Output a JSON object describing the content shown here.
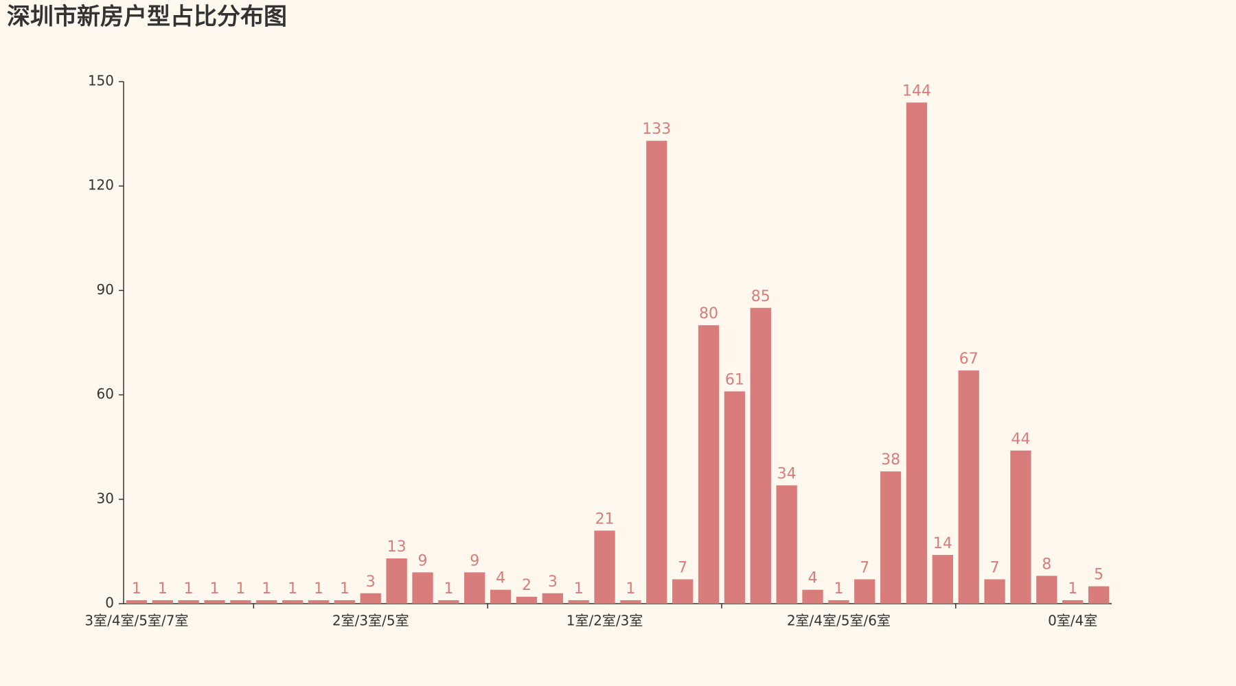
{
  "chart_data": {
    "type": "bar",
    "title": "深圳市新房户型占比分布图",
    "categories": [
      "3室/4室/5室/7室",
      null,
      null,
      null,
      null,
      null,
      null,
      null,
      null,
      "2室/3室/5室",
      null,
      null,
      null,
      null,
      null,
      null,
      null,
      null,
      "1室/2室/3室",
      null,
      null,
      null,
      null,
      null,
      null,
      null,
      null,
      "2室/4室/5室/6室",
      null,
      null,
      null,
      null,
      null,
      null,
      null,
      null,
      "0室/4室",
      null
    ],
    "values": [
      1,
      1,
      1,
      1,
      1,
      1,
      1,
      1,
      1,
      3,
      13,
      9,
      1,
      9,
      4,
      2,
      3,
      1,
      21,
      1,
      133,
      7,
      80,
      61,
      85,
      34,
      4,
      1,
      7,
      38,
      144,
      14,
      67,
      7,
      44,
      8,
      1,
      5
    ],
    "color": "#d87c7c",
    "ylim": [
      0,
      150
    ],
    "yticks": [
      0,
      30,
      60,
      90,
      120,
      150
    ],
    "grid": false
  }
}
